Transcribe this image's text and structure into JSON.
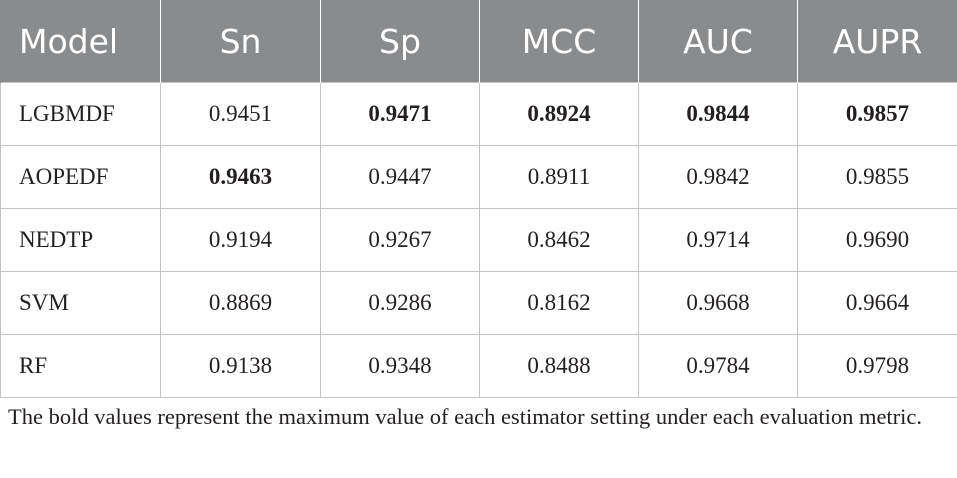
{
  "table": {
    "headers": [
      "Model",
      "Sn",
      "Sp",
      "MCC",
      "AUC",
      "AUPR"
    ],
    "rows": [
      {
        "model": "LGBMDF",
        "cells": [
          {
            "value": "0.9451",
            "bold": false
          },
          {
            "value": "0.9471",
            "bold": true
          },
          {
            "value": "0.8924",
            "bold": true
          },
          {
            "value": "0.9844",
            "bold": true
          },
          {
            "value": "0.9857",
            "bold": true
          }
        ]
      },
      {
        "model": "AOPEDF",
        "cells": [
          {
            "value": "0.9463",
            "bold": true
          },
          {
            "value": "0.9447",
            "bold": false
          },
          {
            "value": "0.8911",
            "bold": false
          },
          {
            "value": "0.9842",
            "bold": false
          },
          {
            "value": "0.9855",
            "bold": false
          }
        ]
      },
      {
        "model": "NEDTP",
        "cells": [
          {
            "value": "0.9194",
            "bold": false
          },
          {
            "value": "0.9267",
            "bold": false
          },
          {
            "value": "0.8462",
            "bold": false
          },
          {
            "value": "0.9714",
            "bold": false
          },
          {
            "value": "0.9690",
            "bold": false
          }
        ]
      },
      {
        "model": "SVM",
        "cells": [
          {
            "value": "0.8869",
            "bold": false
          },
          {
            "value": "0.9286",
            "bold": false
          },
          {
            "value": "0.8162",
            "bold": false
          },
          {
            "value": "0.9668",
            "bold": false
          },
          {
            "value": "0.9664",
            "bold": false
          }
        ]
      },
      {
        "model": "RF",
        "cells": [
          {
            "value": "0.9138",
            "bold": false
          },
          {
            "value": "0.9348",
            "bold": false
          },
          {
            "value": "0.8488",
            "bold": false
          },
          {
            "value": "0.9784",
            "bold": false
          },
          {
            "value": "0.9798",
            "bold": false
          }
        ]
      }
    ]
  },
  "footnote": "The bold values represent the maximum value of each estimator setting under each evaluation metric.",
  "colors": {
    "header_bg": "#8a8b8d",
    "header_text": "#ffffff",
    "grid": "#c4c4c4",
    "text": "#231f20"
  }
}
